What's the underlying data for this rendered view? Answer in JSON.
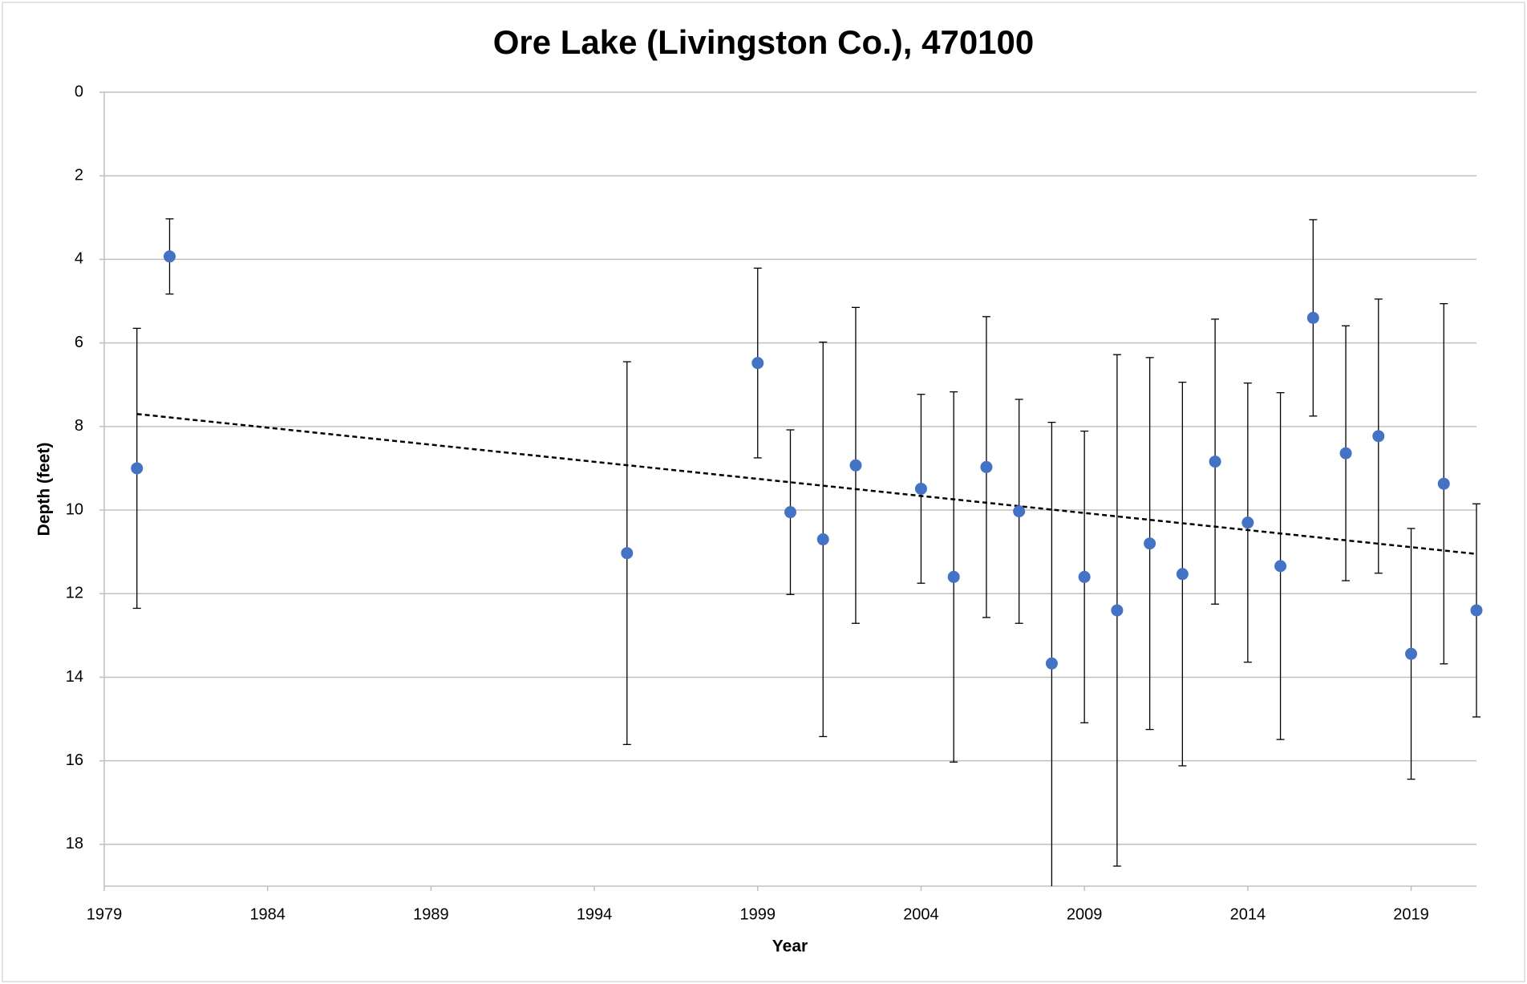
{
  "chart_data": {
    "type": "scatter",
    "title": "Ore Lake (Livingston Co.), 470100",
    "xlabel": "Year",
    "ylabel": "Depth (feet)",
    "xlim": [
      1979,
      2021
    ],
    "xticks": [
      1979,
      1984,
      1989,
      1994,
      1999,
      2004,
      2009,
      2014,
      2019
    ],
    "ylim": [
      0,
      19
    ],
    "yticks": [
      0,
      2,
      4,
      6,
      8,
      10,
      12,
      14,
      16,
      18
    ],
    "y_inverted": true,
    "grid": true,
    "series": [
      {
        "name": "Depth",
        "color": "#4472c4",
        "x": [
          1980,
          1981,
          1995,
          1999,
          2000,
          2001,
          2002,
          2004,
          2005,
          2006,
          2007,
          2008,
          2009,
          2010,
          2011,
          2012,
          2013,
          2014,
          2015,
          2016,
          2017,
          2018,
          2019,
          2020,
          2021
        ],
        "values": [
          9.0,
          3.93,
          11.03,
          6.48,
          10.05,
          10.7,
          8.93,
          9.49,
          11.6,
          8.97,
          10.03,
          13.67,
          11.6,
          12.4,
          10.8,
          11.53,
          8.84,
          10.3,
          11.34,
          5.4,
          8.64,
          8.23,
          13.44,
          9.37,
          12.4
        ],
        "errors": [
          3.35,
          0.9,
          4.58,
          2.27,
          1.97,
          4.72,
          3.78,
          2.26,
          4.43,
          3.6,
          2.68,
          5.77,
          3.49,
          6.12,
          4.45,
          4.59,
          3.41,
          3.34,
          4.15,
          2.35,
          3.05,
          3.28,
          3.0,
          4.31,
          2.55
        ]
      }
    ],
    "trendline": {
      "x": [
        1980,
        2021
      ],
      "values": [
        7.7,
        11.05
      ],
      "color": "#000000"
    }
  }
}
